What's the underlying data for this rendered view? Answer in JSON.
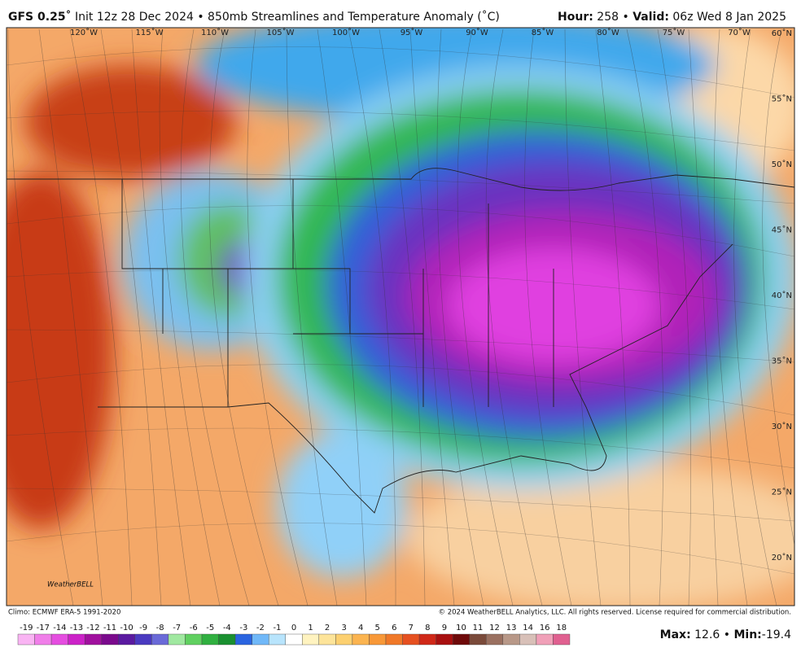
{
  "header": {
    "model": "GFS 0.25˚",
    "title": "Init 12z 28 Dec 2024 • 850mb Streamlines and Temperature Anomaly (˚C)",
    "hour_label": "Hour:",
    "hour": 258,
    "separator": "•",
    "valid_label": "Valid:",
    "valid": "06z Wed 8 Jan 2025"
  },
  "map": {
    "longitudes": [
      "120˚W",
      "115˚W",
      "110˚W",
      "105˚W",
      "100˚W",
      "95˚W",
      "90˚W",
      "85˚W",
      "80˚W",
      "75˚W",
      "70˚W"
    ],
    "latitudes": [
      "60˚N",
      "55˚N",
      "50˚N",
      "45˚N",
      "40˚N",
      "35˚N",
      "30˚N",
      "25˚N",
      "20˚N"
    ],
    "logo": "WeatherBELL"
  },
  "footer": {
    "climo": "Climo: ECMWF ERA-5 1991-2020",
    "copyright": "© 2024 WeatherBELL Analytics, LLC. All rights reserved. License required for commercial distribution."
  },
  "colorbar": {
    "ticks": [
      -19,
      -17,
      -14,
      -13,
      -12,
      -11,
      -10,
      -9,
      -8,
      -7,
      -6,
      -5,
      -4,
      -3,
      -2,
      -1,
      0,
      1,
      2,
      3,
      4,
      5,
      6,
      7,
      8,
      9,
      10,
      11,
      12,
      13,
      14,
      16,
      18
    ],
    "colors": [
      "#f9b4f3",
      "#f07ee9",
      "#e54de0",
      "#cc22c8",
      "#a0109e",
      "#7a0a8c",
      "#5a1aa0",
      "#4a3ac0",
      "#6a6ad8",
      "#a0e8a0",
      "#60d060",
      "#30b040",
      "#1a9030",
      "#2a64e0",
      "#70b8f8",
      "#b8e4fc",
      "#ffffff",
      "#fff3c0",
      "#fde49a",
      "#fcd070",
      "#fbb450",
      "#f89838",
      "#f07828",
      "#e65020",
      "#d02818",
      "#a81010",
      "#6e0a0a",
      "#7a4a3a",
      "#9a7060",
      "#b89888",
      "#d8c0b8",
      "#f0a0b8",
      "#e06090"
    ]
  },
  "stats": {
    "max_label": "Max:",
    "max": 12.6,
    "separator": "•",
    "min_label": "Min:",
    "min": -19.4
  }
}
